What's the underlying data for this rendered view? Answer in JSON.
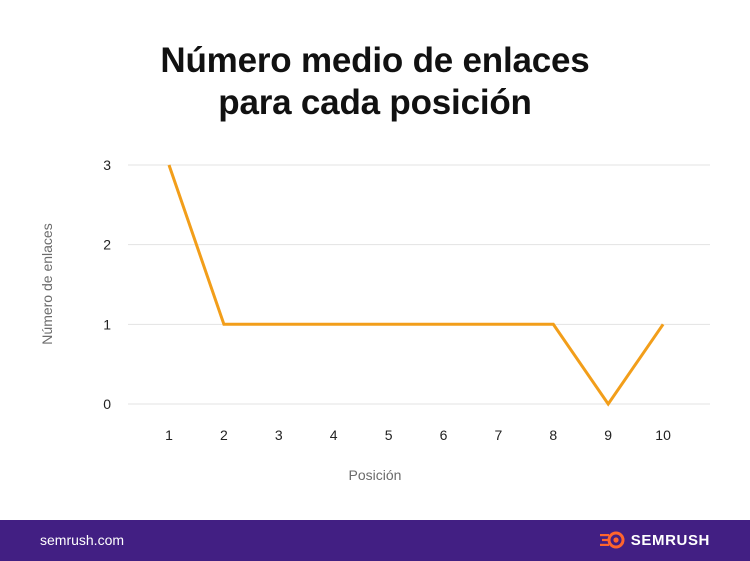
{
  "chart_data": {
    "type": "line",
    "title_lines": [
      "Número medio de enlaces",
      "para cada posición"
    ],
    "xlabel": "Posición",
    "ylabel": "Número de enlaces",
    "categories": [
      "1",
      "2",
      "3",
      "4",
      "5",
      "6",
      "7",
      "8",
      "9",
      "10"
    ],
    "series": [
      {
        "values": [
          3,
          1,
          1,
          1,
          1,
          1,
          1,
          1,
          0,
          1
        ]
      }
    ],
    "yticks": [
      "0",
      "1",
      "2",
      "3"
    ],
    "ylim": [
      0,
      3
    ],
    "grid": true,
    "line_color": "#f29e1a",
    "grid_color": "#e3e3e3"
  },
  "footer": {
    "site": "semrush.com",
    "brand": "SEMRUSH",
    "bg_color": "#421f83",
    "logo_color": "#ff642d",
    "logo_icon": "semrush-fireball-icon"
  }
}
